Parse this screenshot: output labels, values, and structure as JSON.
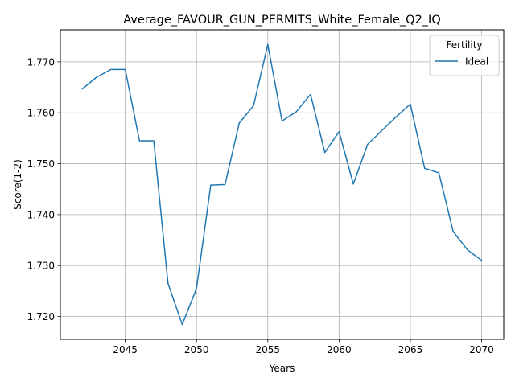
{
  "chart_data": {
    "type": "line",
    "title": "Average_FAVOUR_GUN_PERMITS_White_Female_Q2_IQ",
    "xlabel": "Years",
    "ylabel": "Score(1-2)",
    "xlim": [
      2040.45,
      2071.55
    ],
    "ylim": [
      1.7155,
      1.7763
    ],
    "x_ticks": [
      2045,
      2050,
      2055,
      2060,
      2065,
      2070
    ],
    "y_ticks": [
      1.72,
      1.73,
      1.74,
      1.75,
      1.76,
      1.77
    ],
    "y_tick_labels": [
      "1.720",
      "1.730",
      "1.740",
      "1.750",
      "1.760",
      "1.770"
    ],
    "grid": true,
    "legend": {
      "title": "Fertility",
      "placement": "top-right"
    },
    "series": [
      {
        "name": "Ideal",
        "color": "#1f77b4",
        "x": [
          2042,
          2043,
          2044,
          2045,
          2046,
          2047,
          2048,
          2049,
          2050,
          2051,
          2052,
          2053,
          2054,
          2055,
          2056,
          2057,
          2058,
          2059,
          2060,
          2061,
          2062,
          2063,
          2064,
          2065,
          2066,
          2067,
          2068,
          2069,
          2070
        ],
        "y": [
          1.7647,
          1.767,
          1.7685,
          1.7685,
          1.7545,
          1.7545,
          1.7265,
          1.7184,
          1.7255,
          1.7458,
          1.7459,
          1.758,
          1.7614,
          1.7734,
          1.7584,
          1.7602,
          1.7636,
          1.7522,
          1.7563,
          1.746,
          1.7538,
          1.7565,
          1.7592,
          1.7617,
          1.7491,
          1.7482,
          1.7367,
          1.7331,
          1.731
        ]
      }
    ]
  }
}
